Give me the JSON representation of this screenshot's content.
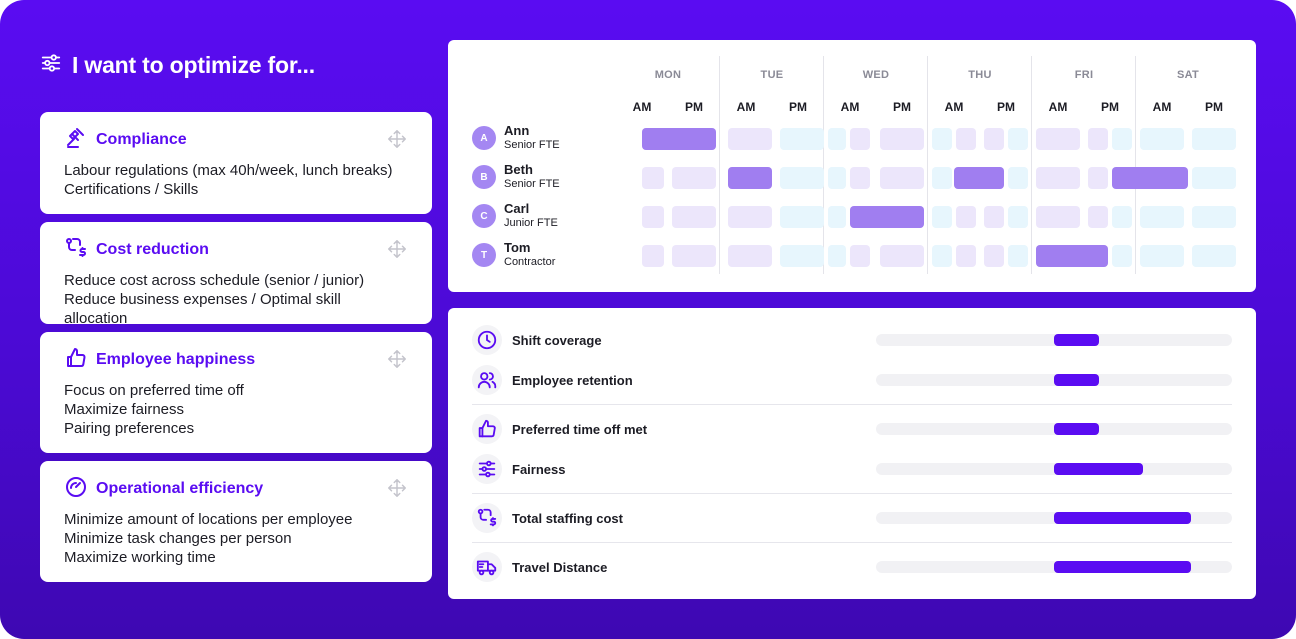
{
  "heading": {
    "title": "I want to optimize for..."
  },
  "cards": [
    {
      "title": "Compliance",
      "icon": "gavel-icon",
      "lines": [
        "Labour regulations (max 40h/week, lunch breaks)",
        "Certifications / Skills"
      ]
    },
    {
      "title": "Cost reduction",
      "icon": "route-dollar-icon",
      "lines": [
        "Reduce cost across schedule (senior / junior)",
        "Reduce business expenses / Optimal skill allocation"
      ]
    },
    {
      "title": "Employee happiness",
      "icon": "thumbs-up-icon",
      "lines": [
        "Focus on preferred time off",
        "Maximize fairness",
        "Pairing preferences"
      ]
    },
    {
      "title": "Operational efficiency",
      "icon": "gauge-icon",
      "lines": [
        "Minimize amount of locations per employee",
        "Minimize task changes per person",
        "Maximize working time"
      ]
    }
  ],
  "schedule": {
    "days": [
      "MON",
      "TUE",
      "WED",
      "THU",
      "FRI",
      "SAT"
    ],
    "am": "AM",
    "pm": "PM",
    "employees": [
      {
        "initial": "A",
        "name": "Ann",
        "role": "Senior FTE"
      },
      {
        "initial": "B",
        "name": "Beth",
        "role": "Senior FTE"
      },
      {
        "initial": "C",
        "name": "Carl",
        "role": "Junior FTE"
      },
      {
        "initial": "T",
        "name": "Tom",
        "role": "Contractor"
      }
    ],
    "shifts": [
      {
        "employee": "Ann",
        "day": "MON",
        "span": "AM-PM"
      },
      {
        "employee": "Beth",
        "day": "TUE",
        "span": "AM"
      },
      {
        "employee": "Beth",
        "day": "THU",
        "span": "PM"
      },
      {
        "employee": "Beth",
        "day": "SAT",
        "span": "AM"
      },
      {
        "employee": "Carl",
        "day": "WED",
        "span": "PM"
      },
      {
        "employee": "Tom",
        "day": "FRI",
        "span": "AM-PM"
      }
    ]
  },
  "metrics": [
    {
      "label": "Shift coverage",
      "icon": "clock-icon",
      "start": 0.5,
      "end": 0.625
    },
    {
      "label": "Employee retention",
      "icon": "users-icon",
      "start": 0.5,
      "end": 0.625
    },
    {
      "label": "Preferred time off met",
      "icon": "thumbs-up-icon",
      "start": 0.5,
      "end": 0.625
    },
    {
      "label": "Fairness",
      "icon": "sliders-icon",
      "start": 0.5,
      "end": 0.75
    },
    {
      "label": "Total staffing cost",
      "icon": "route-dollar-icon",
      "start": 0.5,
      "end": 0.885
    },
    {
      "label": "Travel Distance",
      "icon": "truck-icon",
      "start": 0.5,
      "end": 0.885
    }
  ],
  "colors": {
    "brand": "#5a0cf2",
    "shift": "#a07ef0",
    "slot_violet": "#ece6fb",
    "slot_cyan": "#e7f6fd"
  }
}
